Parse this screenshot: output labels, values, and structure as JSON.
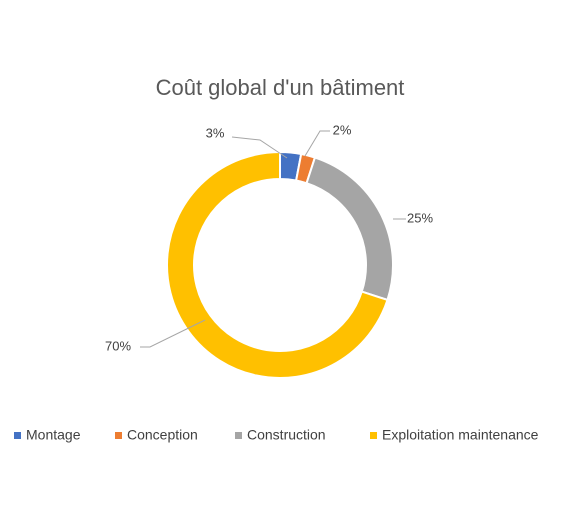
{
  "chart_data": {
    "type": "donut",
    "title": "Coût global d'un bâtiment",
    "categories": [
      "Montage",
      "Conception",
      "Construction",
      "Exploitation maintenance"
    ],
    "values": [
      3,
      2,
      25,
      70
    ],
    "value_labels": [
      "3%",
      "2%",
      "25%",
      "70%"
    ],
    "colors": [
      "#4472c4",
      "#ed7d31",
      "#a5a5a5",
      "#ffc000"
    ],
    "legend": "bottom"
  }
}
